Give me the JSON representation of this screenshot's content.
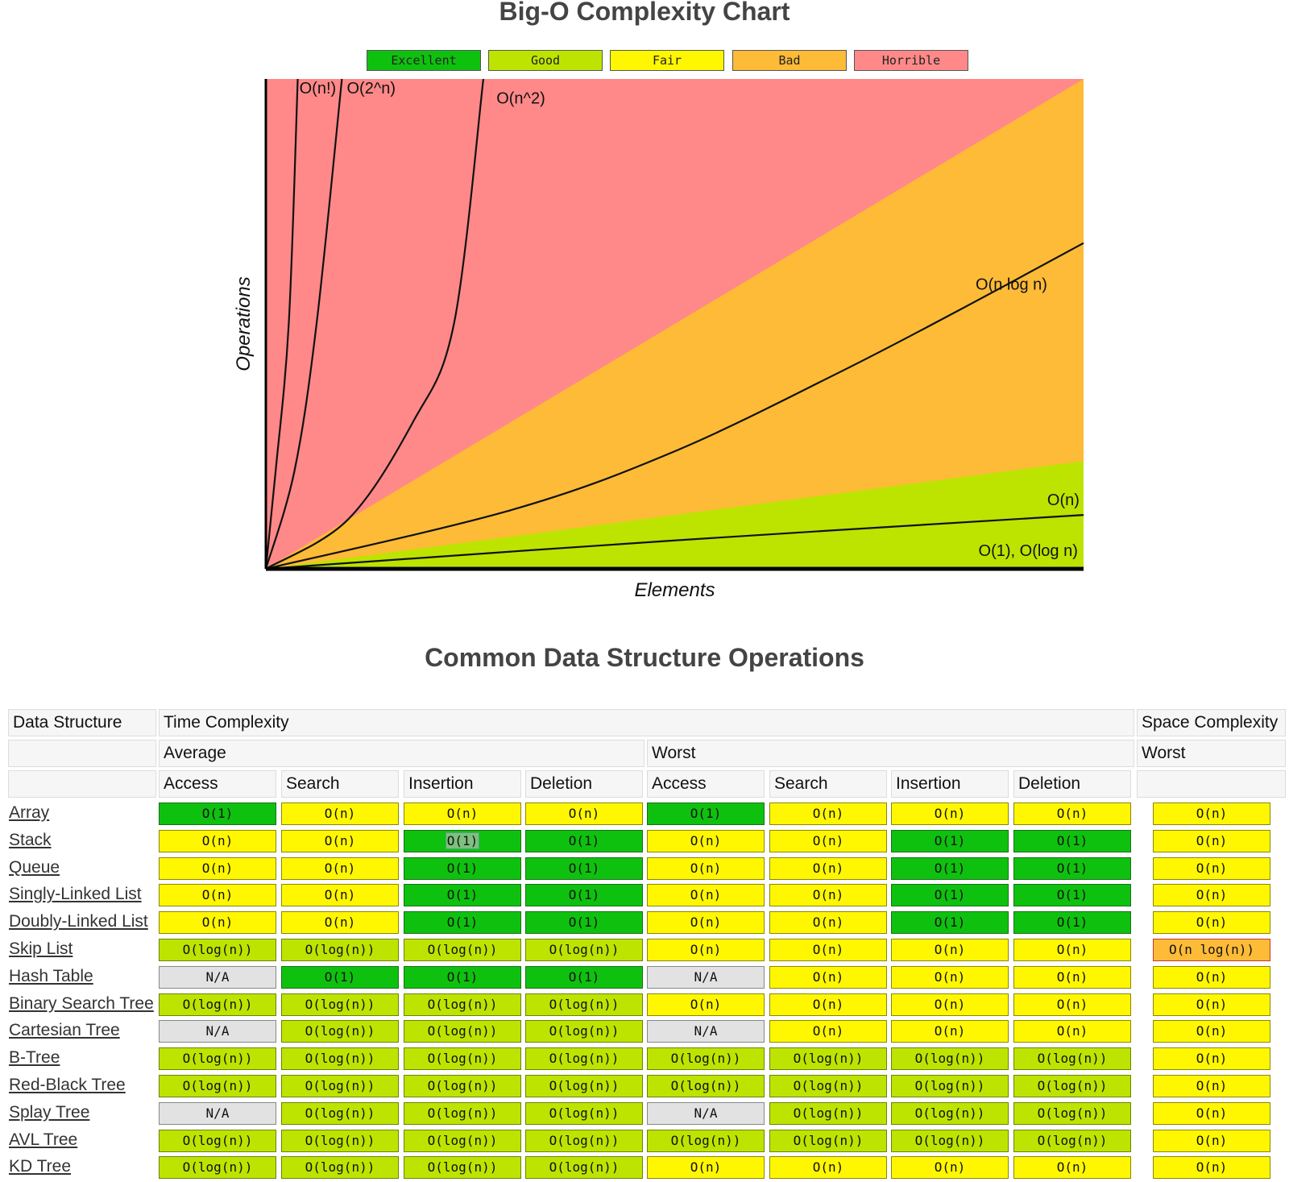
{
  "chart_title": "Big-O Complexity Chart",
  "legend": [
    {
      "label": "Excellent",
      "color": "#0fc10f"
    },
    {
      "label": "Good",
      "color": "#bde400"
    },
    {
      "label": "Fair",
      "color": "#fff700"
    },
    {
      "label": "Bad",
      "color": "#fdbb37"
    },
    {
      "label": "Horrible",
      "color": "#ff8989"
    }
  ],
  "chart_data": {
    "type": "line",
    "title": "Big-O Complexity Chart",
    "xlabel": "Elements",
    "ylabel": "Operations",
    "xlim": [
      0,
      100
    ],
    "ylim": [
      0,
      100
    ],
    "grid": false,
    "legend_position": "top-center",
    "regions": [
      {
        "rating": "Horrible",
        "color": "#ff8989",
        "from_slope": 1.0,
        "to_slope": null
      },
      {
        "rating": "Bad",
        "color": "#fdbb37",
        "from_slope": 0.22,
        "to_slope": 1.0
      },
      {
        "rating": "Good",
        "color": "#bde400",
        "from_slope": 0.0,
        "to_slope": 0.22
      }
    ],
    "series": [
      {
        "name": "O(n!)",
        "points": [
          [
            0,
            0
          ],
          [
            1.2,
            20
          ],
          [
            2.8,
            50
          ],
          [
            3.9,
            100
          ]
        ]
      },
      {
        "name": "O(2^n)",
        "points": [
          [
            0,
            0
          ],
          [
            3.5,
            20
          ],
          [
            6.2,
            50
          ],
          [
            9.3,
            100
          ]
        ]
      },
      {
        "name": "O(n^2)",
        "points": [
          [
            0,
            0
          ],
          [
            10,
            10
          ],
          [
            18,
            30
          ],
          [
            23,
            50
          ],
          [
            26.6,
            100
          ]
        ]
      },
      {
        "name": "O(n log n)",
        "points": [
          [
            0,
            0
          ],
          [
            30,
            12
          ],
          [
            50,
            24
          ],
          [
            70,
            40
          ],
          [
            85,
            53
          ],
          [
            100,
            66.5
          ]
        ]
      },
      {
        "name": "O(n)",
        "points": [
          [
            0,
            0
          ],
          [
            50,
            5.8
          ],
          [
            100,
            11
          ]
        ]
      },
      {
        "name": "O(1), O(log n)",
        "points": [
          [
            0,
            0
          ],
          [
            100,
            0
          ]
        ]
      }
    ],
    "annotations": [
      "O(n!)",
      "O(2^n)",
      "O(n^2)",
      "O(n log n)",
      "O(n)",
      "O(1), O(log n)"
    ]
  },
  "table": {
    "title": "Common Data Structure Operations",
    "header_row1": {
      "data_structure": "Data Structure",
      "time": "Time Complexity",
      "space": "Space Complexity"
    },
    "header_row2": {
      "average": "Average",
      "worst": "Worst",
      "space_worst": "Worst"
    },
    "header_row3": [
      "Access",
      "Search",
      "Insertion",
      "Deletion",
      "Access",
      "Search",
      "Insertion",
      "Deletion"
    ],
    "rows": [
      {
        "name": "Array",
        "cells": [
          [
            "O(1)",
            "excellent"
          ],
          [
            "O(n)",
            "fair"
          ],
          [
            "O(n)",
            "fair"
          ],
          [
            "O(n)",
            "fair"
          ],
          [
            "O(1)",
            "excellent"
          ],
          [
            "O(n)",
            "fair"
          ],
          [
            "O(n)",
            "fair"
          ],
          [
            "O(n)",
            "fair"
          ],
          [
            "O(n)",
            "fair"
          ]
        ]
      },
      {
        "name": "Stack",
        "cells": [
          [
            "O(n)",
            "fair"
          ],
          [
            "O(n)",
            "fair"
          ],
          [
            "O(1)",
            "excellent"
          ],
          [
            "O(1)",
            "excellent"
          ],
          [
            "O(n)",
            "fair"
          ],
          [
            "O(n)",
            "fair"
          ],
          [
            "O(1)",
            "excellent"
          ],
          [
            "O(1)",
            "excellent"
          ],
          [
            "O(n)",
            "fair"
          ]
        ]
      },
      {
        "name": "Queue",
        "cells": [
          [
            "O(n)",
            "fair"
          ],
          [
            "O(n)",
            "fair"
          ],
          [
            "O(1)",
            "excellent"
          ],
          [
            "O(1)",
            "excellent"
          ],
          [
            "O(n)",
            "fair"
          ],
          [
            "O(n)",
            "fair"
          ],
          [
            "O(1)",
            "excellent"
          ],
          [
            "O(1)",
            "excellent"
          ],
          [
            "O(n)",
            "fair"
          ]
        ]
      },
      {
        "name": "Singly-Linked List",
        "cells": [
          [
            "O(n)",
            "fair"
          ],
          [
            "O(n)",
            "fair"
          ],
          [
            "O(1)",
            "excellent"
          ],
          [
            "O(1)",
            "excellent"
          ],
          [
            "O(n)",
            "fair"
          ],
          [
            "O(n)",
            "fair"
          ],
          [
            "O(1)",
            "excellent"
          ],
          [
            "O(1)",
            "excellent"
          ],
          [
            "O(n)",
            "fair"
          ]
        ]
      },
      {
        "name": "Doubly-Linked List",
        "cells": [
          [
            "O(n)",
            "fair"
          ],
          [
            "O(n)",
            "fair"
          ],
          [
            "O(1)",
            "excellent"
          ],
          [
            "O(1)",
            "excellent"
          ],
          [
            "O(n)",
            "fair"
          ],
          [
            "O(n)",
            "fair"
          ],
          [
            "O(1)",
            "excellent"
          ],
          [
            "O(1)",
            "excellent"
          ],
          [
            "O(n)",
            "fair"
          ]
        ]
      },
      {
        "name": "Skip List",
        "cells": [
          [
            "O(log(n))",
            "good"
          ],
          [
            "O(log(n))",
            "good"
          ],
          [
            "O(log(n))",
            "good"
          ],
          [
            "O(log(n))",
            "good"
          ],
          [
            "O(n)",
            "fair"
          ],
          [
            "O(n)",
            "fair"
          ],
          [
            "O(n)",
            "fair"
          ],
          [
            "O(n)",
            "fair"
          ],
          [
            "O(n log(n))",
            "bad"
          ]
        ]
      },
      {
        "name": "Hash Table",
        "cells": [
          [
            "N/A",
            "na"
          ],
          [
            "O(1)",
            "excellent"
          ],
          [
            "O(1)",
            "excellent"
          ],
          [
            "O(1)",
            "excellent"
          ],
          [
            "N/A",
            "na"
          ],
          [
            "O(n)",
            "fair"
          ],
          [
            "O(n)",
            "fair"
          ],
          [
            "O(n)",
            "fair"
          ],
          [
            "O(n)",
            "fair"
          ]
        ]
      },
      {
        "name": "Binary Search Tree",
        "cells": [
          [
            "O(log(n))",
            "good"
          ],
          [
            "O(log(n))",
            "good"
          ],
          [
            "O(log(n))",
            "good"
          ],
          [
            "O(log(n))",
            "good"
          ],
          [
            "O(n)",
            "fair"
          ],
          [
            "O(n)",
            "fair"
          ],
          [
            "O(n)",
            "fair"
          ],
          [
            "O(n)",
            "fair"
          ],
          [
            "O(n)",
            "fair"
          ]
        ]
      },
      {
        "name": "Cartesian Tree",
        "cells": [
          [
            "N/A",
            "na"
          ],
          [
            "O(log(n))",
            "good"
          ],
          [
            "O(log(n))",
            "good"
          ],
          [
            "O(log(n))",
            "good"
          ],
          [
            "N/A",
            "na"
          ],
          [
            "O(n)",
            "fair"
          ],
          [
            "O(n)",
            "fair"
          ],
          [
            "O(n)",
            "fair"
          ],
          [
            "O(n)",
            "fair"
          ]
        ]
      },
      {
        "name": "B-Tree",
        "cells": [
          [
            "O(log(n))",
            "good"
          ],
          [
            "O(log(n))",
            "good"
          ],
          [
            "O(log(n))",
            "good"
          ],
          [
            "O(log(n))",
            "good"
          ],
          [
            "O(log(n))",
            "good"
          ],
          [
            "O(log(n))",
            "good"
          ],
          [
            "O(log(n))",
            "good"
          ],
          [
            "O(log(n))",
            "good"
          ],
          [
            "O(n)",
            "fair"
          ]
        ]
      },
      {
        "name": "Red-Black Tree",
        "cells": [
          [
            "O(log(n))",
            "good"
          ],
          [
            "O(log(n))",
            "good"
          ],
          [
            "O(log(n))",
            "good"
          ],
          [
            "O(log(n))",
            "good"
          ],
          [
            "O(log(n))",
            "good"
          ],
          [
            "O(log(n))",
            "good"
          ],
          [
            "O(log(n))",
            "good"
          ],
          [
            "O(log(n))",
            "good"
          ],
          [
            "O(n)",
            "fair"
          ]
        ]
      },
      {
        "name": "Splay Tree",
        "cells": [
          [
            "N/A",
            "na"
          ],
          [
            "O(log(n))",
            "good"
          ],
          [
            "O(log(n))",
            "good"
          ],
          [
            "O(log(n))",
            "good"
          ],
          [
            "N/A",
            "na"
          ],
          [
            "O(log(n))",
            "good"
          ],
          [
            "O(log(n))",
            "good"
          ],
          [
            "O(log(n))",
            "good"
          ],
          [
            "O(n)",
            "fair"
          ]
        ]
      },
      {
        "name": "AVL Tree",
        "cells": [
          [
            "O(log(n))",
            "good"
          ],
          [
            "O(log(n))",
            "good"
          ],
          [
            "O(log(n))",
            "good"
          ],
          [
            "O(log(n))",
            "good"
          ],
          [
            "O(log(n))",
            "good"
          ],
          [
            "O(log(n))",
            "good"
          ],
          [
            "O(log(n))",
            "good"
          ],
          [
            "O(log(n))",
            "good"
          ],
          [
            "O(n)",
            "fair"
          ]
        ]
      },
      {
        "name": "KD Tree",
        "cells": [
          [
            "O(log(n))",
            "good"
          ],
          [
            "O(log(n))",
            "good"
          ],
          [
            "O(log(n))",
            "good"
          ],
          [
            "O(log(n))",
            "good"
          ],
          [
            "O(n)",
            "fair"
          ],
          [
            "O(n)",
            "fair"
          ],
          [
            "O(n)",
            "fair"
          ],
          [
            "O(n)",
            "fair"
          ],
          [
            "O(n)",
            "fair"
          ]
        ]
      }
    ]
  }
}
